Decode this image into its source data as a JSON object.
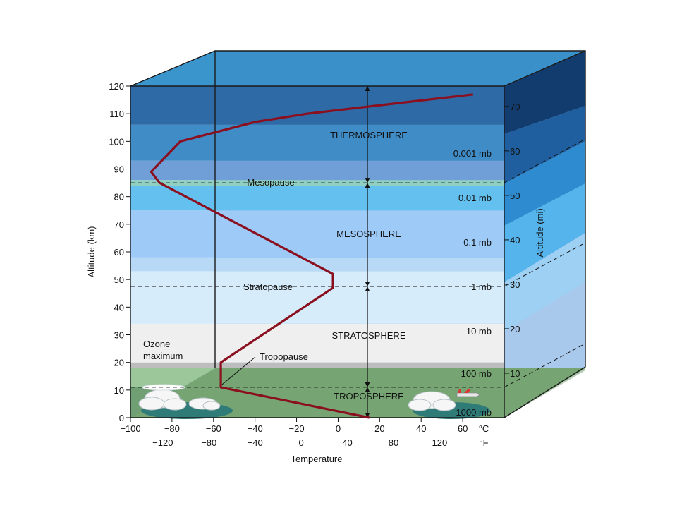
{
  "chart_data": {
    "type": "line",
    "xlabel": "Temperature",
    "ylabel": "Altitude (km)",
    "y2label": "Altitude (mi)",
    "xlim": [
      -100,
      80
    ],
    "ylim": [
      0,
      120
    ],
    "x_ticks_c": [
      "−100",
      "−80",
      "−60",
      "−40",
      "−20",
      "0",
      "20",
      "40",
      "60"
    ],
    "x_ticks_f": [
      "−120",
      "−80",
      "−40",
      "0",
      "40",
      "80",
      "120"
    ],
    "x_unit_c": "°C",
    "x_unit_f": "°F",
    "y_ticks": [
      "0",
      "10",
      "20",
      "30",
      "40",
      "50",
      "60",
      "70",
      "80",
      "90",
      "100",
      "110",
      "120"
    ],
    "y2_ticks": [
      "10",
      "20",
      "30",
      "40",
      "50",
      "60",
      "70"
    ],
    "series": [
      {
        "x": [
          15,
          -56.5,
          -56.5,
          -2.5,
          -2.5,
          -86,
          -90,
          -76,
          -40,
          -15,
          65
        ],
        "y": [
          0,
          11,
          20,
          47,
          52,
          85,
          89,
          100,
          107,
          110,
          117
        ]
      }
    ],
    "layers": [
      "TROPOSPHERE",
      "STRATOSPHERE",
      "MESOSPHERE",
      "THERMOSPHERE"
    ],
    "pauses": [
      "Tropopause",
      "Stratopause",
      "Mesopause"
    ],
    "pressure_labels": [
      "1000 mb",
      "100 mb",
      "10 mb",
      "1 mb",
      "0.1 mb",
      "0.01 mb",
      "0.001 mb"
    ],
    "annotation": "Ozone\nmaximum",
    "ozone_line1": "Ozone",
    "ozone_line2": "maximum",
    "colors": {
      "curve": "#8a1020",
      "troposphere": "#6f9f73",
      "ground_top": "#9cc79a",
      "stratosphere_low": "#efefef",
      "stratosphere_high": "#d6ecfb",
      "mesosphere": "#9dcaf7",
      "mesopause_band": "#7fc6ea",
      "thermosphere": "#3f8cc6",
      "thermosphere_top": "#2e6aa5",
      "top_face": "#3a93cc",
      "side_face": "#8cc0ea"
    }
  }
}
